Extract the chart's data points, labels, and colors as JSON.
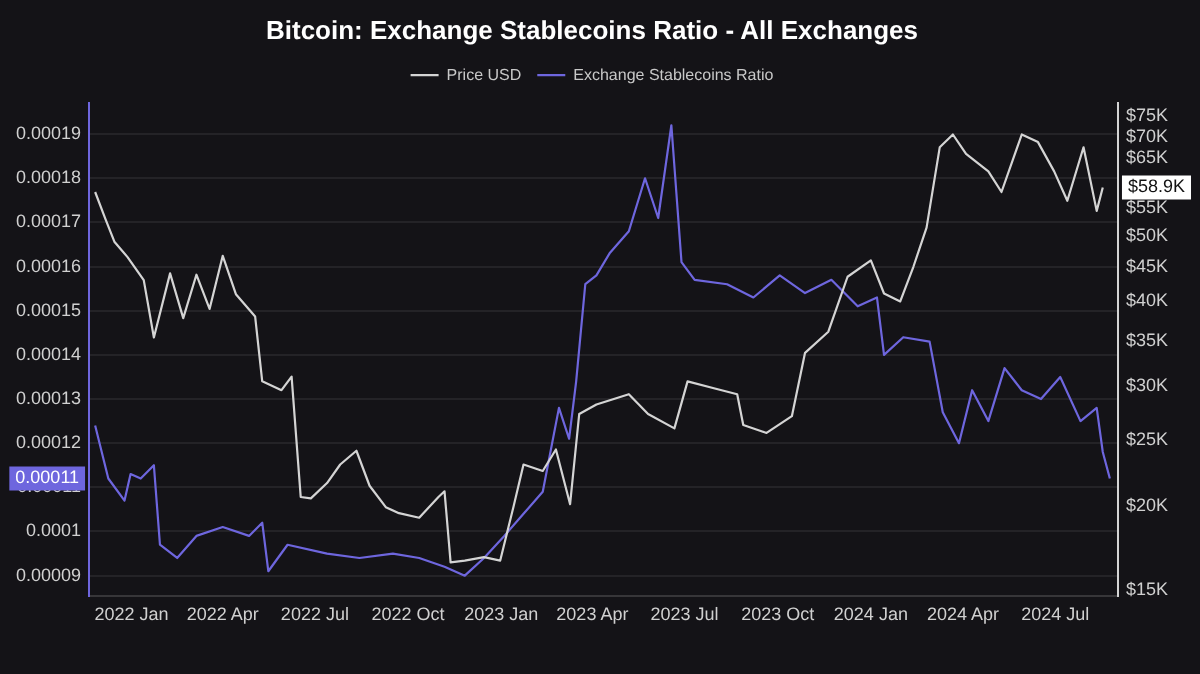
{
  "chart_data": {
    "type": "line",
    "title": "Bitcoin: Exchange Stablecoins Ratio - All Exchanges",
    "legend": "top",
    "grid": "y",
    "marker": "none",
    "log": "y2",
    "xlim": [
      "2021-11-20",
      "2024-09-01"
    ],
    "xticks": [
      {
        "value": "2022-01-01",
        "label": "2022 Jan"
      },
      {
        "value": "2022-04-01",
        "label": "2022 Apr"
      },
      {
        "value": "2022-07-01",
        "label": "2022 Jul"
      },
      {
        "value": "2022-10-01",
        "label": "2022 Oct"
      },
      {
        "value": "2023-01-01",
        "label": "2023 Jan"
      },
      {
        "value": "2023-04-01",
        "label": "2023 Apr"
      },
      {
        "value": "2023-07-01",
        "label": "2023 Jul"
      },
      {
        "value": "2023-10-01",
        "label": "2023 Oct"
      },
      {
        "value": "2024-01-01",
        "label": "2024 Jan"
      },
      {
        "value": "2024-04-01",
        "label": "2024 Apr"
      },
      {
        "value": "2024-07-01",
        "label": "2024 Jul"
      }
    ],
    "ylim": [
      8.53e-05,
      0.000197
    ],
    "yticks": [
      {
        "value": 9e-05,
        "label": "0.00009"
      },
      0.0001,
      0.00011,
      0.00012,
      0.00013,
      0.00014,
      0.00015,
      0.00016,
      0.00017,
      0.00018,
      0.00019
    ],
    "y2lim": [
      14700,
      78400
    ],
    "y2ticks": [
      {
        "value": 15000,
        "label": "$15K"
      },
      {
        "value": 20000,
        "label": "$20K"
      },
      {
        "value": 25000,
        "label": "$25K"
      },
      {
        "value": 30000,
        "label": "$30K"
      },
      {
        "value": 35000,
        "label": "$35K"
      },
      {
        "value": 40000,
        "label": "$40K"
      },
      {
        "value": 45000,
        "label": "$45K"
      },
      {
        "value": 50000,
        "label": "$50K"
      },
      {
        "value": 55000,
        "label": "$55K"
      },
      {
        "value": 65000,
        "label": "$65K"
      },
      {
        "value": 70000,
        "label": "$70K"
      },
      {
        "value": 75000,
        "label": "$75K"
      }
    ],
    "annotations": [
      "$58.9K",
      "0.00011"
    ],
    "series": [
      {
        "name": "Price USD",
        "color": "#d4d4d4",
        "axis": "y2",
        "x": [
          "2021-11-26",
          "2021-12-06",
          "2021-12-15",
          "2021-12-28",
          "2022-01-13",
          "2022-01-23",
          "2022-02-08",
          "2022-02-21",
          "2022-03-06",
          "2022-03-19",
          "2022-04-01",
          "2022-04-14",
          "2022-05-03",
          "2022-05-10",
          "2022-05-29",
          "2022-06-08",
          "2022-06-17",
          "2022-06-27",
          "2022-07-13",
          "2022-07-26",
          "2022-08-11",
          "2022-08-24",
          "2022-09-09",
          "2022-09-22",
          "2022-10-12",
          "2022-10-31",
          "2022-11-06",
          "2022-11-12",
          "2022-11-26",
          "2022-12-15",
          "2022-12-31",
          "2023-01-13",
          "2023-01-23",
          "2023-02-11",
          "2023-02-24",
          "2023-03-10",
          "2023-03-19",
          "2023-04-05",
          "2023-05-07",
          "2023-05-26",
          "2023-06-21",
          "2023-07-04",
          "2023-07-30",
          "2023-08-22",
          "2023-08-28",
          "2023-09-20",
          "2023-10-15",
          "2023-10-28",
          "2023-11-20",
          "2023-12-09",
          "2024-01-01",
          "2024-01-14",
          "2024-01-30",
          "2024-02-12",
          "2024-02-25",
          "2024-03-09",
          "2024-03-22",
          "2024-04-04",
          "2024-04-26",
          "2024-05-09",
          "2024-05-29",
          "2024-06-14",
          "2024-06-30",
          "2024-07-13",
          "2024-07-29",
          "2024-08-11",
          "2024-08-17"
        ],
        "values": [
          58000,
          53000,
          49000,
          46500,
          43000,
          35400,
          44000,
          37800,
          43800,
          39000,
          46700,
          41000,
          38000,
          30500,
          29600,
          31000,
          20600,
          20500,
          21600,
          23000,
          24100,
          21400,
          19900,
          19500,
          19200,
          20600,
          21000,
          16500,
          16600,
          16800,
          16600,
          19900,
          23000,
          22500,
          24200,
          20100,
          27300,
          28200,
          29200,
          27300,
          26000,
          30500,
          29800,
          29200,
          26300,
          25600,
          27100,
          33600,
          36100,
          43500,
          46000,
          41100,
          40000,
          45000,
          51400,
          67500,
          70500,
          66000,
          62200,
          58000,
          70500,
          68700,
          62200,
          56300,
          67500,
          54400,
          58900
        ]
      },
      {
        "name": "Exchange Stablecoins Ratio",
        "color": "#6e66de",
        "x": [
          "2021-11-26",
          "2021-12-09",
          "2021-12-25",
          "2021-12-31",
          "2022-01-10",
          "2022-01-23",
          "2022-01-29",
          "2022-02-15",
          "2022-03-06",
          "2022-04-01",
          "2022-04-27",
          "2022-05-10",
          "2022-05-16",
          "2022-06-04",
          "2022-07-13",
          "2022-08-14",
          "2022-09-16",
          "2022-10-12",
          "2022-11-06",
          "2022-11-26",
          "2022-12-15",
          "2023-01-04",
          "2023-01-23",
          "2023-02-11",
          "2023-02-27",
          "2023-03-09",
          "2023-03-16",
          "2023-03-25",
          "2023-04-05",
          "2023-04-18",
          "2023-05-07",
          "2023-05-23",
          "2023-06-05",
          "2023-06-18",
          "2023-06-28",
          "2023-07-11",
          "2023-08-12",
          "2023-09-07",
          "2023-10-03",
          "2023-10-28",
          "2023-11-23",
          "2023-12-19",
          "2024-01-07",
          "2024-01-14",
          "2024-02-02",
          "2024-02-28",
          "2024-03-12",
          "2024-03-28",
          "2024-04-10",
          "2024-04-26",
          "2024-05-12",
          "2024-05-29",
          "2024-06-17",
          "2024-07-06",
          "2024-07-26",
          "2024-08-11",
          "2024-08-17",
          "2024-08-24"
        ],
        "values": [
          0.000124,
          0.000112,
          0.000107,
          0.000113,
          0.000112,
          0.000115,
          9.7e-05,
          9.4e-05,
          9.9e-05,
          0.000101,
          9.9e-05,
          0.000102,
          9.1e-05,
          9.7e-05,
          9.5e-05,
          9.4e-05,
          9.5e-05,
          9.4e-05,
          9.2e-05,
          9e-05,
          9.4e-05,
          9.9e-05,
          0.000104,
          0.000109,
          0.000128,
          0.000121,
          0.000134,
          0.000156,
          0.000158,
          0.000163,
          0.000168,
          0.00018,
          0.000171,
          0.000192,
          0.000161,
          0.000157,
          0.000156,
          0.000153,
          0.000158,
          0.000154,
          0.000157,
          0.000151,
          0.000153,
          0.00014,
          0.000144,
          0.000143,
          0.000127,
          0.00012,
          0.000132,
          0.000125,
          0.000137,
          0.000132,
          0.00013,
          0.000135,
          0.000125,
          0.000128,
          0.000118,
          0.000112
        ]
      }
    ]
  }
}
